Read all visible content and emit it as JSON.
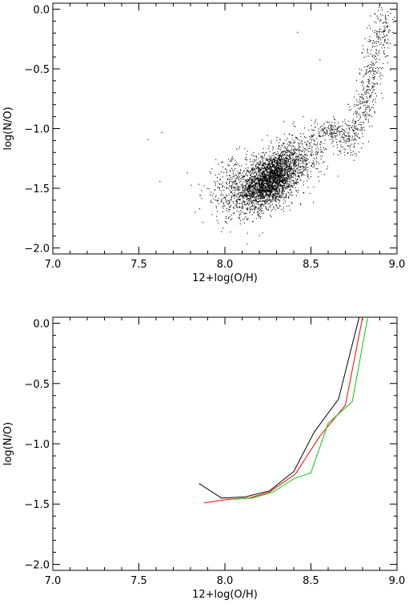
{
  "chart_data": [
    {
      "type": "scatter",
      "xlabel": "12+log(O/H)",
      "ylabel": "log(N/O)",
      "xlim": [
        7.0,
        9.0
      ],
      "ylim": [
        -2.05,
        0.05
      ],
      "xticks": [
        "7.0",
        "7.5",
        "8.0",
        "8.5",
        "9.0"
      ],
      "yticks": [
        "0.0",
        "-0.5",
        "-1.0",
        "-1.5",
        "-2.0"
      ],
      "ytick_values": [
        0.0,
        -0.5,
        -1.0,
        -1.5,
        -2.0
      ],
      "xtick_values": [
        7.0,
        7.5,
        8.0,
        8.5,
        9.0
      ],
      "point_color": "#000000",
      "isolated_points": [
        [
          7.55,
          -1.09
        ],
        [
          7.62,
          -1.44
        ],
        [
          7.63,
          -1.03
        ],
        [
          8.42,
          -0.19
        ],
        [
          8.55,
          -0.42
        ]
      ],
      "clusters": [
        {
          "name": "main-blob",
          "count": 2600,
          "cx": 8.26,
          "cy": -1.43,
          "sx": 0.085,
          "sy": 0.12,
          "rho": 0.45
        },
        {
          "name": "blob-tail",
          "count": 380,
          "cx": 8.05,
          "cy": -1.5,
          "sx": 0.09,
          "sy": 0.13,
          "rho": 0.2
        },
        {
          "name": "upper-spread",
          "count": 420,
          "cx": 8.42,
          "cy": -1.25,
          "sx": 0.09,
          "sy": 0.12,
          "rho": 0.3
        },
        {
          "name": "bridge",
          "count": 180,
          "cx": 8.63,
          "cy": -1.02,
          "sx": 0.06,
          "sy": 0.05,
          "rho": 0.0
        }
      ],
      "branch": {
        "count": 520,
        "x_from": 8.68,
        "x_to": 8.92,
        "y_from": -1.2,
        "y_to": 0.0,
        "jitter_x": 0.035,
        "jitter_y": 0.05
      }
    },
    {
      "type": "line",
      "xlabel": "12+log(O/H)",
      "ylabel": "log(N/O)",
      "xlim": [
        7.0,
        9.0
      ],
      "ylim": [
        -2.05,
        0.05
      ],
      "xticks": [
        "7.0",
        "7.5",
        "8.0",
        "8.5",
        "9.0"
      ],
      "yticks": [
        "0.0",
        "-0.5",
        "-1.0",
        "-1.5",
        "-2.0"
      ],
      "ytick_values": [
        0.0,
        -0.5,
        -1.0,
        -1.5,
        -2.0
      ],
      "xtick_values": [
        7.0,
        7.5,
        8.0,
        8.5,
        9.0
      ],
      "series": [
        {
          "color": "#000000",
          "points": [
            [
              7.85,
              -1.33
            ],
            [
              7.98,
              -1.45
            ],
            [
              8.12,
              -1.44
            ],
            [
              8.26,
              -1.39
            ],
            [
              8.4,
              -1.23
            ],
            [
              8.52,
              -0.9
            ],
            [
              8.66,
              -0.63
            ],
            [
              8.78,
              0.05
            ]
          ]
        },
        {
          "color": "#ff0000",
          "points": [
            [
              7.88,
              -1.49
            ],
            [
              8.02,
              -1.46
            ],
            [
              8.14,
              -1.45
            ],
            [
              8.26,
              -1.4
            ],
            [
              8.41,
              -1.25
            ],
            [
              8.55,
              -0.94
            ],
            [
              8.7,
              -0.68
            ],
            [
              8.8,
              0.05
            ]
          ]
        },
        {
          "color": "#00cc00",
          "points": [
            [
              8.05,
              -1.46
            ],
            [
              8.16,
              -1.45
            ],
            [
              8.28,
              -1.4
            ],
            [
              8.4,
              -1.29
            ],
            [
              8.5,
              -1.24
            ],
            [
              8.6,
              -0.83
            ],
            [
              8.74,
              -0.65
            ],
            [
              8.83,
              0.05
            ]
          ]
        }
      ]
    }
  ]
}
